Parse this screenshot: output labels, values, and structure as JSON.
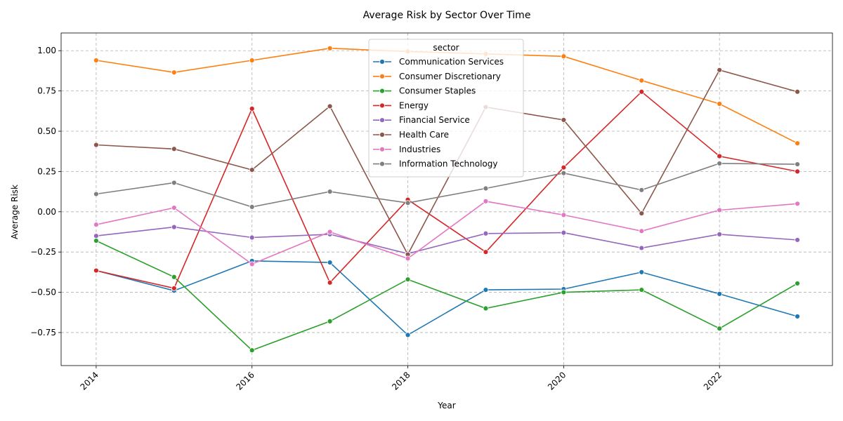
{
  "chart_data": {
    "type": "line",
    "title": "Average Risk by Sector Over Time",
    "xlabel": "Year",
    "ylabel": "Average Risk",
    "x": [
      2014,
      2015,
      2016,
      2017,
      2018,
      2019,
      2020,
      2021,
      2022,
      2023
    ],
    "xlim": [
      2013.55,
      2023.45
    ],
    "ylim": [
      -0.955,
      1.11
    ],
    "x_ticks": [
      "2014",
      "2016",
      "2018",
      "2020",
      "2022"
    ],
    "x_tick_values": [
      2014,
      2016,
      2018,
      2020,
      2022
    ],
    "y_ticks": [
      "−0.75",
      "−0.50",
      "−0.25",
      "0.00",
      "0.25",
      "0.50",
      "0.75",
      "1.00"
    ],
    "y_tick_values": [
      -0.75,
      -0.5,
      -0.25,
      0.0,
      0.25,
      0.5,
      0.75,
      1.0
    ],
    "grid": true,
    "legend_title": "sector",
    "legend_position": "top-center",
    "series": [
      {
        "name": "Communication Services",
        "color": "#1f77b4",
        "values": [
          -0.365,
          -0.49,
          -0.305,
          -0.315,
          -0.765,
          -0.485,
          -0.48,
          -0.375,
          -0.51,
          -0.65
        ]
      },
      {
        "name": "Consumer Discretionary",
        "color": "#ff7f0e",
        "values": [
          0.94,
          0.865,
          0.94,
          1.015,
          0.995,
          0.98,
          0.965,
          0.815,
          0.67,
          0.425
        ]
      },
      {
        "name": "Consumer Staples",
        "color": "#2ca02c",
        "values": [
          -0.18,
          -0.405,
          -0.86,
          -0.68,
          -0.42,
          -0.6,
          -0.5,
          -0.485,
          -0.725,
          -0.445
        ]
      },
      {
        "name": "Energy",
        "color": "#d62728",
        "values": [
          -0.365,
          -0.475,
          0.64,
          -0.44,
          0.075,
          -0.25,
          0.275,
          0.745,
          0.345,
          0.25
        ]
      },
      {
        "name": "Financial Service",
        "color": "#9467bd",
        "values": [
          -0.15,
          -0.095,
          -0.16,
          -0.14,
          -0.26,
          -0.135,
          -0.13,
          -0.225,
          -0.14,
          -0.175
        ]
      },
      {
        "name": "Health Care",
        "color": "#8c564b",
        "values": [
          0.415,
          0.39,
          0.26,
          0.655,
          -0.265,
          0.65,
          0.57,
          -0.01,
          0.88,
          0.745
        ]
      },
      {
        "name": "Industries",
        "color": "#e377c2",
        "values": [
          -0.08,
          0.025,
          -0.325,
          -0.125,
          -0.29,
          0.065,
          -0.02,
          -0.12,
          0.01,
          0.05
        ]
      },
      {
        "name": "Information Technology",
        "color": "#7f7f7f",
        "values": [
          0.11,
          0.18,
          0.03,
          0.125,
          0.055,
          0.145,
          0.24,
          0.135,
          0.3,
          0.295
        ]
      }
    ]
  }
}
